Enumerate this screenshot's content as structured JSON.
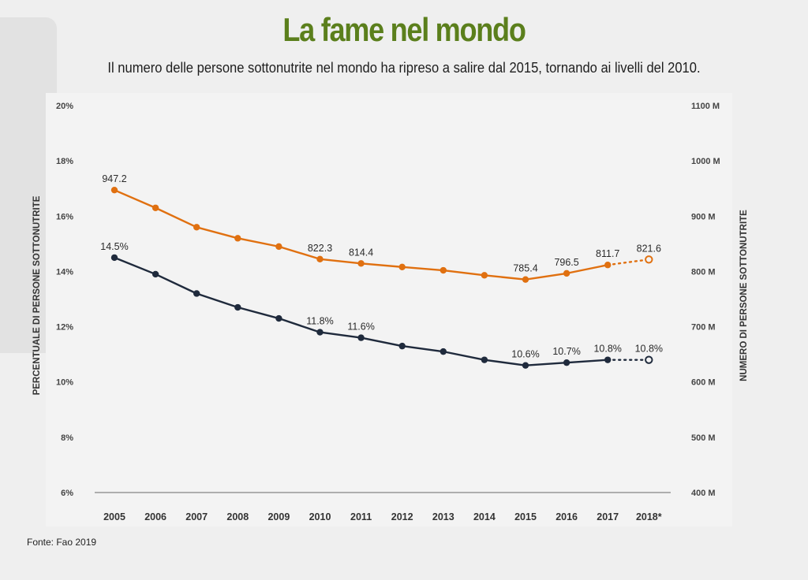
{
  "title": "La fame nel mondo",
  "subtitle": "Il numero delle persone sottonutrite nel mondo ha ripreso a salire dal 2015, tornando ai livelli del 2010.",
  "source": "Fonte: Fao 2019",
  "colors": {
    "title": "#5b7f1c",
    "number_series": "#e07010",
    "percent_series": "#1f2a3c",
    "axis": "#555555"
  },
  "chart_data": {
    "type": "line",
    "title": "La fame nel mondo",
    "x": [
      "2005",
      "2006",
      "2007",
      "2008",
      "2009",
      "2010",
      "2011",
      "2012",
      "2013",
      "2014",
      "2015",
      "2016",
      "2017",
      "2018*"
    ],
    "ylabel_left": "PERCENTUALE DI PERSONE SOTTONUTRITE",
    "ylabel_right": "NUMERO DI PERSONE SOTTONUTRITE",
    "ylim_left": [
      6,
      20
    ],
    "ylim_right": [
      400,
      1100
    ],
    "yticks_left": [
      "6%",
      "8%",
      "10%",
      "12%",
      "14%",
      "16%",
      "18%",
      "20%"
    ],
    "yticks_right": [
      "400 M",
      "500 M",
      "600 M",
      "700 M",
      "800 M",
      "900 M",
      "1000 M",
      "1100 M"
    ],
    "grid": false,
    "series": [
      {
        "axis": "right",
        "color": "#e07010",
        "values": [
          947.2,
          915,
          880,
          860,
          845,
          822.3,
          814.4,
          808,
          802,
          793,
          785.4,
          796.5,
          811.7,
          821.6
        ],
        "labels": [
          "947.2",
          "",
          "",
          "",
          "",
          "822.3",
          "814.4",
          "",
          "",
          "",
          "785.4",
          "796.5",
          "811.7",
          "821.6"
        ],
        "projected_from_index": 12
      },
      {
        "axis": "left",
        "color": "#1f2a3c",
        "values": [
          14.5,
          13.9,
          13.2,
          12.7,
          12.3,
          11.8,
          11.6,
          11.3,
          11.1,
          10.8,
          10.6,
          10.7,
          10.8,
          10.8
        ],
        "labels": [
          "14.5%",
          "",
          "",
          "",
          "",
          "11.8%",
          "11.6%",
          "",
          "",
          "",
          "10.6%",
          "10.7%",
          "10.8%",
          "10.8%"
        ],
        "projected_from_index": 12
      }
    ]
  }
}
